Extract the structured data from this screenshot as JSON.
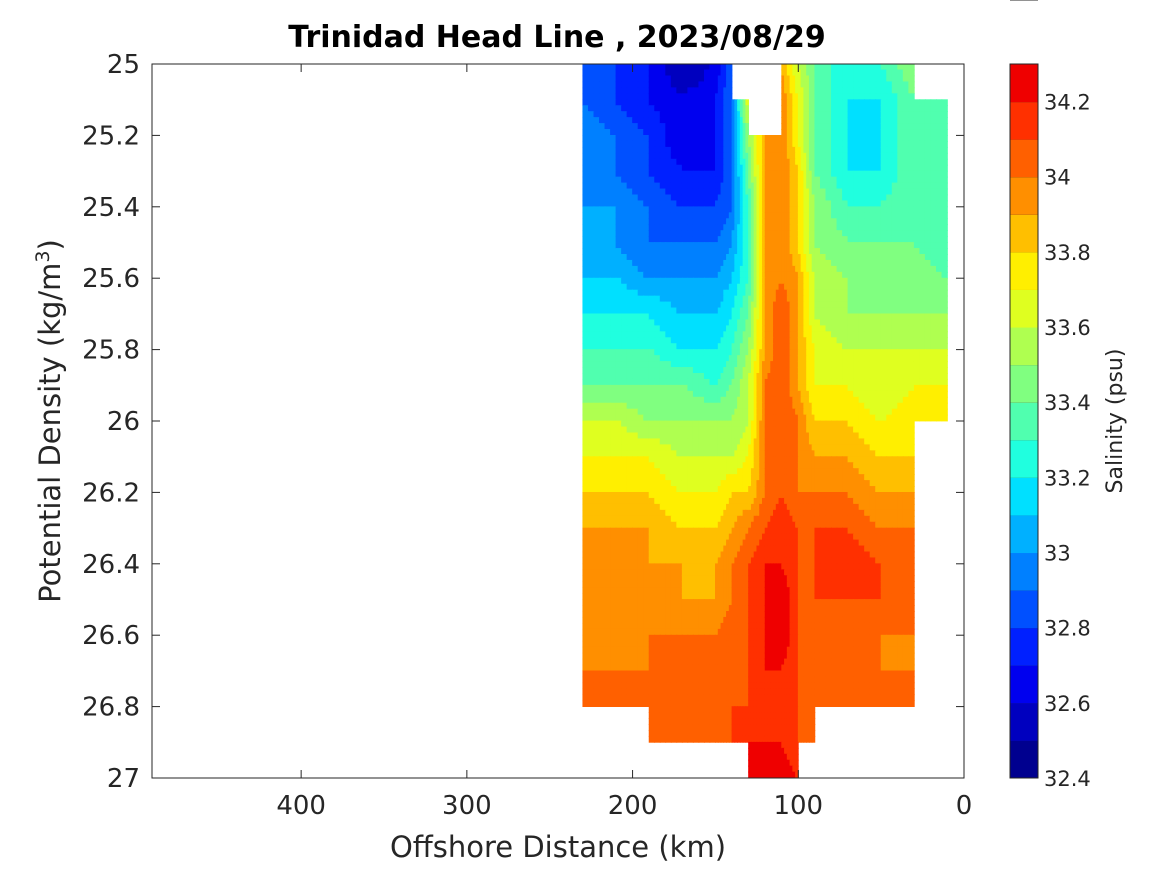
{
  "chart_data": {
    "type": "heatmap",
    "title": "Trinidad Head Line , 2023/08/29",
    "xlabel": "Offshore Distance (km)",
    "ylabel_main": "Potential Density (kg/m",
    "ylabel_sup": "3",
    "ylabel_close": ")",
    "colorbar_label": "Salinity (psu)",
    "x_reversed": true,
    "y_reversed": true,
    "xlim": [
      0,
      490
    ],
    "ylim": [
      25,
      27
    ],
    "x_ticks": [
      400,
      300,
      200,
      100,
      0
    ],
    "x_tick_labels": [
      "400",
      "300",
      "200",
      "100",
      "0"
    ],
    "y_ticks": [
      25,
      25.2,
      25.4,
      25.6,
      25.8,
      26,
      26.2,
      26.4,
      26.6,
      26.8,
      27
    ],
    "y_tick_labels": [
      "25",
      "25.2",
      "25.4",
      "25.6",
      "25.8",
      "26",
      "26.2",
      "26.4",
      "26.6",
      "26.8",
      "27"
    ],
    "colorbar_range": [
      32.4,
      34.3
    ],
    "colorbar_levels": [
      32.4,
      32.5,
      32.6,
      32.7,
      32.8,
      32.9,
      33.0,
      33.1,
      33.2,
      33.3,
      33.4,
      33.5,
      33.6,
      33.7,
      33.8,
      33.9,
      34.0,
      34.1,
      34.2,
      34.3
    ],
    "colorbar_colors": [
      "#00008f",
      "#0000bf",
      "#0000ef",
      "#0020ff",
      "#0050ff",
      "#0080ff",
      "#00b0ff",
      "#00e0ff",
      "#20ffdf",
      "#50ffaf",
      "#80ff80",
      "#afff50",
      "#dfff20",
      "#ffef00",
      "#ffbf00",
      "#ff8f00",
      "#ff6000",
      "#ff3000",
      "#ef0000",
      "#bf0000"
    ],
    "colorbar_ticks": [
      32.4,
      32.6,
      32.8,
      33.0,
      33.2,
      33.4,
      33.6,
      33.8,
      34.0,
      34.2
    ],
    "colorbar_tick_labels": [
      "32.4",
      "32.6",
      "32.8",
      "33",
      "33.2",
      "33.4",
      "33.6",
      "33.8",
      "34",
      "34.2"
    ],
    "data": {
      "x": [
        230,
        210,
        190,
        170,
        150,
        140,
        130,
        120,
        110,
        100,
        90,
        70,
        50,
        30,
        10
      ],
      "y": [
        25.0,
        25.1,
        25.2,
        25.3,
        25.4,
        25.5,
        25.6,
        25.7,
        25.8,
        25.9,
        26.0,
        26.1,
        26.2,
        26.3,
        26.4,
        26.5,
        26.6,
        26.7,
        26.8,
        26.9,
        27.0
      ],
      "salinity": [
        [
          32.9,
          32.8,
          32.7,
          32.5,
          32.6,
          32.9,
          null,
          null,
          33.9,
          33.6,
          33.4,
          33.2,
          33.3,
          33.5,
          null
        ],
        [
          32.9,
          32.8,
          32.7,
          32.6,
          32.7,
          32.9,
          33.7,
          null,
          34.0,
          33.7,
          33.4,
          33.2,
          33.2,
          33.4,
          33.4
        ],
        [
          33.0,
          32.9,
          32.8,
          32.6,
          32.7,
          32.9,
          33.5,
          33.9,
          34.0,
          33.7,
          33.4,
          33.2,
          33.2,
          33.4,
          33.4
        ],
        [
          33.0,
          32.9,
          32.8,
          32.7,
          32.7,
          32.9,
          33.4,
          33.9,
          34.0,
          33.8,
          33.4,
          33.2,
          33.2,
          33.4,
          33.3
        ],
        [
          33.0,
          33.0,
          32.9,
          32.8,
          32.8,
          32.9,
          33.3,
          33.9,
          34.0,
          33.8,
          33.5,
          33.3,
          33.3,
          33.4,
          33.3
        ],
        [
          33.1,
          33.0,
          32.9,
          32.9,
          32.9,
          33.0,
          33.3,
          33.9,
          34.0,
          33.8,
          33.5,
          33.4,
          33.4,
          33.4,
          33.3
        ],
        [
          33.1,
          33.1,
          33.0,
          33.0,
          33.0,
          33.1,
          33.3,
          33.9,
          34.0,
          33.9,
          33.6,
          33.5,
          33.5,
          33.5,
          33.4
        ],
        [
          33.2,
          33.2,
          33.2,
          33.1,
          33.1,
          33.2,
          33.4,
          33.9,
          34.1,
          33.9,
          33.6,
          33.5,
          33.5,
          33.5,
          33.5
        ],
        [
          33.3,
          33.3,
          33.3,
          33.2,
          33.2,
          33.3,
          33.5,
          33.9,
          34.1,
          33.9,
          33.7,
          33.6,
          33.6,
          33.6,
          33.6
        ],
        [
          33.4,
          33.4,
          33.4,
          33.4,
          33.3,
          33.4,
          33.6,
          34.0,
          34.1,
          33.9,
          33.7,
          33.7,
          33.6,
          33.7,
          33.7
        ],
        [
          33.6,
          33.6,
          33.5,
          33.5,
          33.5,
          33.5,
          33.6,
          34.0,
          34.1,
          34.0,
          33.8,
          33.8,
          33.7,
          33.8,
          33.8
        ],
        [
          33.7,
          33.7,
          33.7,
          33.6,
          33.6,
          33.6,
          33.7,
          34.0,
          34.1,
          34.0,
          33.9,
          33.9,
          33.8,
          33.8,
          null
        ],
        [
          33.8,
          33.8,
          33.8,
          33.7,
          33.7,
          33.8,
          33.8,
          34.0,
          34.1,
          34.0,
          34.0,
          34.0,
          33.9,
          33.9,
          null
        ],
        [
          33.9,
          33.9,
          33.9,
          33.8,
          33.8,
          33.9,
          34.0,
          34.1,
          34.2,
          34.1,
          34.1,
          34.1,
          34.0,
          34.0,
          null
        ],
        [
          34.0,
          34.0,
          33.9,
          33.9,
          33.9,
          34.0,
          34.1,
          34.2,
          34.2,
          34.1,
          34.1,
          34.2,
          34.1,
          34.0,
          null
        ],
        [
          34.0,
          34.0,
          34.0,
          33.9,
          33.9,
          34.0,
          34.1,
          34.2,
          34.3,
          34.1,
          34.1,
          34.1,
          34.1,
          34.1,
          null
        ],
        [
          34.0,
          34.0,
          34.0,
          34.0,
          34.0,
          34.1,
          34.1,
          34.2,
          34.3,
          34.1,
          34.1,
          34.1,
          34.0,
          34.0,
          null
        ],
        [
          34.0,
          34.0,
          34.0,
          34.1,
          34.0,
          34.1,
          34.1,
          34.2,
          34.2,
          34.1,
          34.1,
          34.0,
          34.0,
          34.0,
          null
        ],
        [
          34.0,
          34.1,
          34.1,
          34.1,
          34.1,
          34.1,
          34.1,
          34.2,
          34.2,
          34.1,
          34.1,
          34.1,
          34.1,
          34.1,
          null
        ],
        [
          null,
          null,
          34.1,
          34.1,
          34.1,
          34.1,
          34.2,
          34.2,
          34.2,
          34.1,
          34.1,
          null,
          null,
          null,
          null
        ],
        [
          null,
          null,
          null,
          null,
          null,
          null,
          34.2,
          34.3,
          34.3,
          34.2,
          null,
          null,
          null,
          null,
          null
        ]
      ]
    }
  }
}
